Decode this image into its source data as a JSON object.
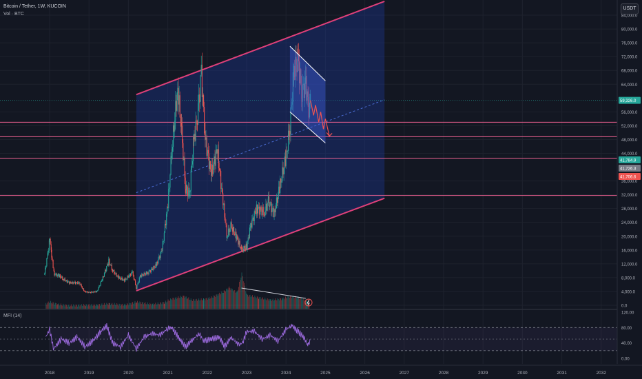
{
  "header": {
    "symbol_title": "Bitcoin / Tether, 1W, KUCOIN",
    "volume_label": "Vol · BTC",
    "currency_button": "USDT"
  },
  "indicator": {
    "title": "MFI (14)",
    "ticks": [
      "120.00",
      "80.00",
      "40.00",
      "0.00"
    ]
  },
  "colors": {
    "background": "#131722",
    "up": "#26a69a",
    "down": "#ef5350",
    "channel_line": "#e0407a",
    "channel_fill": "#1e3aa0",
    "support_line": "#f06292",
    "mfi": "#9c6ade"
  },
  "chart_data": {
    "type": "candlestick",
    "title": "Bitcoin / Tether, 1W, KUCOIN",
    "x_ticks": [
      "2018",
      "2019",
      "2020",
      "2021",
      "2022",
      "2023",
      "2024",
      "2025",
      "2026",
      "2027",
      "2028",
      "2029",
      "2030",
      "2031",
      "2032"
    ],
    "y_ticks": [
      "84,000.0",
      "80,000.0",
      "76,000.0",
      "72,000.0",
      "68,000.0",
      "64,000.0",
      "56,000.0",
      "52,000.0",
      "48,000.0",
      "44,000.0",
      "36,000.0",
      "32,000.0",
      "28,000.0",
      "24,000.0",
      "20,000.0",
      "16,000.0",
      "12,000.0",
      "8,000.0",
      "4,000.0",
      "0.0"
    ],
    "ylim": [
      0,
      86000
    ],
    "price_series": [
      [
        2017.87,
        9000
      ],
      [
        2017.97,
        16500
      ],
      [
        2018.0,
        20000
      ],
      [
        2018.05,
        14000
      ],
      [
        2018.12,
        9000
      ],
      [
        2018.25,
        8500
      ],
      [
        2018.35,
        7500
      ],
      [
        2018.5,
        6500
      ],
      [
        2018.75,
        6500
      ],
      [
        2018.88,
        4000
      ],
      [
        2019.0,
        3700
      ],
      [
        2019.2,
        4000
      ],
      [
        2019.35,
        8000
      ],
      [
        2019.5,
        12800
      ],
      [
        2019.6,
        10000
      ],
      [
        2019.75,
        8000
      ],
      [
        2019.9,
        7200
      ],
      [
        2020.1,
        9500
      ],
      [
        2020.2,
        5000
      ],
      [
        2020.3,
        8500
      ],
      [
        2020.5,
        9500
      ],
      [
        2020.7,
        11500
      ],
      [
        2020.85,
        16000
      ],
      [
        2021.0,
        29000
      ],
      [
        2021.1,
        45000
      ],
      [
        2021.25,
        63000
      ],
      [
        2021.35,
        50000
      ],
      [
        2021.45,
        34000
      ],
      [
        2021.55,
        32000
      ],
      [
        2021.65,
        47000
      ],
      [
        2021.75,
        55000
      ],
      [
        2021.85,
        67000
      ],
      [
        2021.95,
        48000
      ],
      [
        2022.1,
        38000
      ],
      [
        2022.25,
        45000
      ],
      [
        2022.4,
        30000
      ],
      [
        2022.5,
        20000
      ],
      [
        2022.6,
        23000
      ],
      [
        2022.75,
        19500
      ],
      [
        2022.87,
        16000
      ],
      [
        2023.0,
        17000
      ],
      [
        2023.1,
        23000
      ],
      [
        2023.25,
        28000
      ],
      [
        2023.45,
        27000
      ],
      [
        2023.55,
        30000
      ],
      [
        2023.7,
        26500
      ],
      [
        2023.85,
        35000
      ],
      [
        2024.0,
        43000
      ],
      [
        2024.1,
        52000
      ],
      [
        2024.2,
        68000
      ],
      [
        2024.3,
        71000
      ],
      [
        2024.4,
        62000
      ],
      [
        2024.5,
        64000
      ],
      [
        2024.58,
        57000
      ],
      [
        2024.62,
        59326
      ]
    ],
    "volume_series": [
      [
        2017.9,
        6
      ],
      [
        2018.0,
        9
      ],
      [
        2018.2,
        5
      ],
      [
        2018.5,
        3
      ],
      [
        2018.9,
        4
      ],
      [
        2019.2,
        4
      ],
      [
        2019.5,
        6
      ],
      [
        2019.9,
        4
      ],
      [
        2020.2,
        9
      ],
      [
        2020.6,
        5
      ],
      [
        2020.9,
        8
      ],
      [
        2021.1,
        14
      ],
      [
        2021.4,
        18
      ],
      [
        2021.6,
        12
      ],
      [
        2021.9,
        13
      ],
      [
        2022.1,
        16
      ],
      [
        2022.4,
        25
      ],
      [
        2022.55,
        32
      ],
      [
        2022.75,
        24
      ],
      [
        2022.87,
        55
      ],
      [
        2023.0,
        20
      ],
      [
        2023.3,
        16
      ],
      [
        2023.6,
        12
      ],
      [
        2023.9,
        14
      ],
      [
        2024.1,
        18
      ],
      [
        2024.3,
        16
      ],
      [
        2024.5,
        12
      ],
      [
        2024.6,
        10
      ]
    ],
    "mfi_series": [
      [
        2017.9,
        55
      ],
      [
        2018.0,
        75
      ],
      [
        2018.1,
        25
      ],
      [
        2018.3,
        50
      ],
      [
        2018.5,
        40
      ],
      [
        2018.7,
        55
      ],
      [
        2018.9,
        30
      ],
      [
        2019.1,
        45
      ],
      [
        2019.3,
        70
      ],
      [
        2019.45,
        85
      ],
      [
        2019.6,
        40
      ],
      [
        2019.8,
        30
      ],
      [
        2020.0,
        60
      ],
      [
        2020.2,
        25
      ],
      [
        2020.4,
        55
      ],
      [
        2020.6,
        65
      ],
      [
        2020.8,
        60
      ],
      [
        2021.0,
        78
      ],
      [
        2021.1,
        80
      ],
      [
        2021.3,
        50
      ],
      [
        2021.45,
        30
      ],
      [
        2021.6,
        45
      ],
      [
        2021.8,
        65
      ],
      [
        2021.9,
        45
      ],
      [
        2022.1,
        50
      ],
      [
        2022.3,
        55
      ],
      [
        2022.45,
        30
      ],
      [
        2022.6,
        55
      ],
      [
        2022.8,
        35
      ],
      [
        2022.9,
        40
      ],
      [
        2023.0,
        70
      ],
      [
        2023.2,
        70
      ],
      [
        2023.4,
        50
      ],
      [
        2023.6,
        60
      ],
      [
        2023.8,
        45
      ],
      [
        2024.0,
        75
      ],
      [
        2024.15,
        85
      ],
      [
        2024.3,
        70
      ],
      [
        2024.45,
        55
      ],
      [
        2024.55,
        35
      ],
      [
        2024.62,
        45
      ]
    ],
    "price_labels": [
      {
        "value": 59326.0,
        "label": "59,326.0",
        "color": "#26a69a"
      },
      {
        "value": 41784.9,
        "label": "41,784.9",
        "color": "#26a69a"
      },
      {
        "value": 41726.3,
        "label": "41,726.3",
        "color": "#787b86"
      },
      {
        "value": 41706.6,
        "label": "41,706.6",
        "color": "#ef5350"
      }
    ],
    "horizontal_lines": [
      53000,
      48800,
      42600,
      31800
    ],
    "channel": {
      "x_start": 2020.2,
      "x_end": 2026.5,
      "upper": [
        61000,
        88000
      ],
      "lower": [
        4200,
        31000
      ]
    },
    "flag": {
      "upper": [
        [
          2024.1,
          75000
        ],
        [
          2025.0,
          65000
        ]
      ],
      "lower": [
        [
          2024.1,
          56000
        ],
        [
          2025.0,
          47000
        ]
      ]
    },
    "volume_trend": [
      [
        2022.87,
        4000
      ],
      [
        2024.5,
        1000
      ]
    ]
  }
}
